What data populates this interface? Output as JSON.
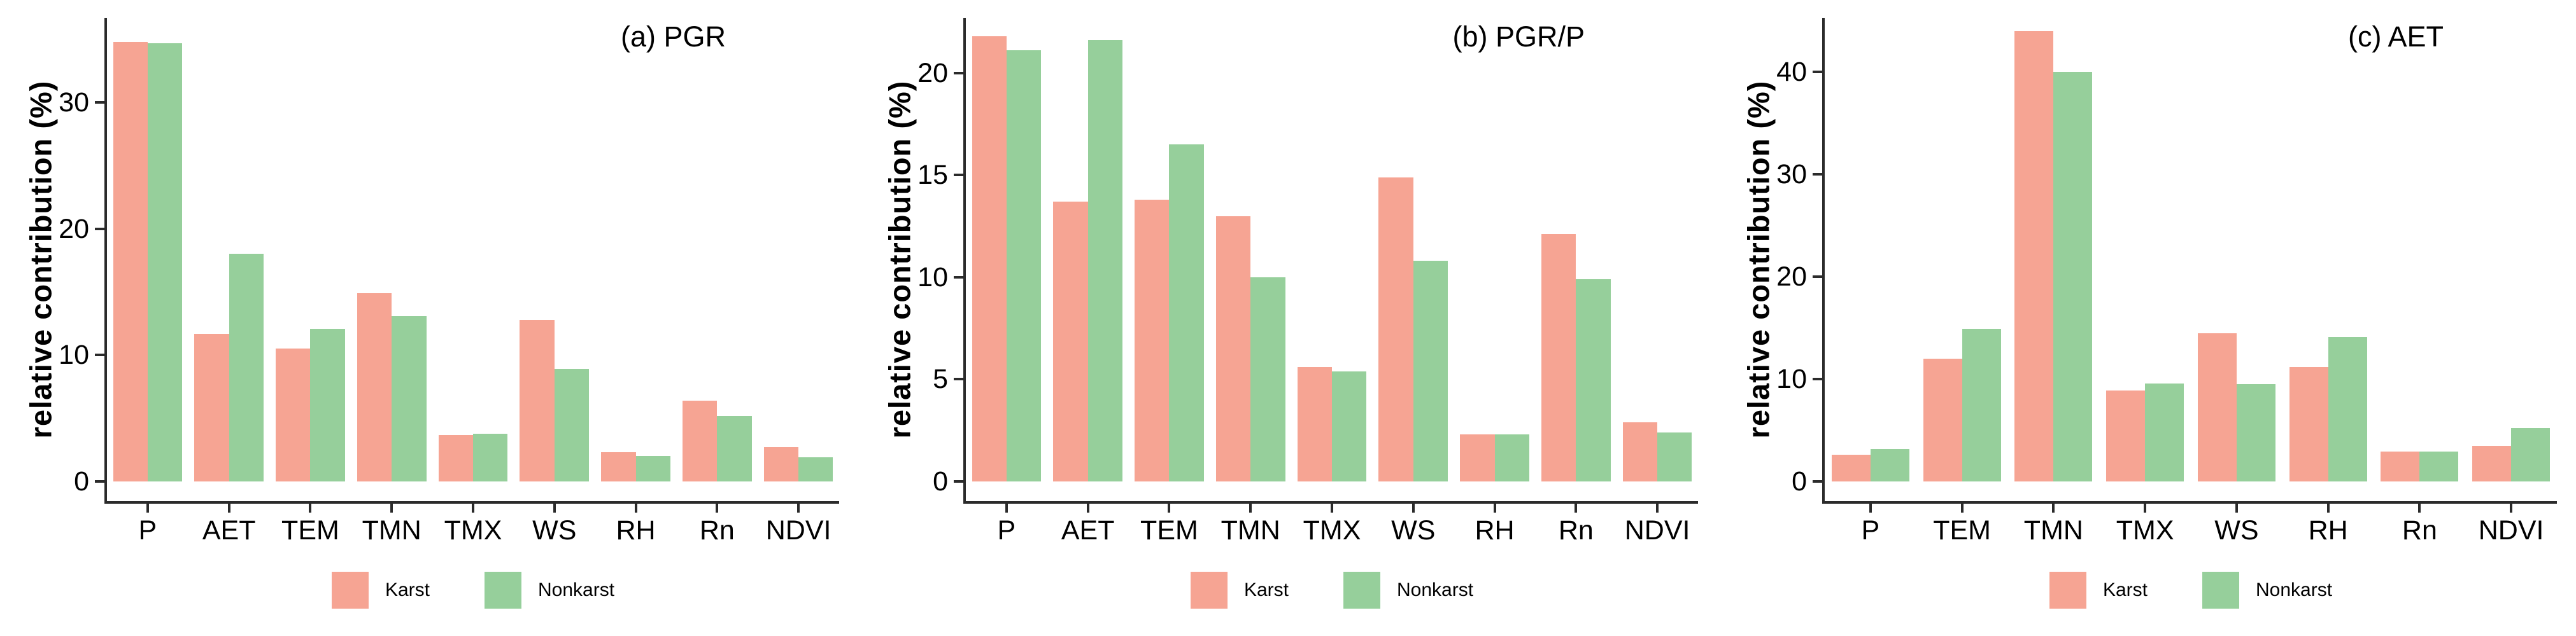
{
  "figure": {
    "ylabel": "relative contribution (%)"
  },
  "colors": {
    "karst": "#F6A493",
    "nonkarst": "#96CF9B",
    "axis": "#2B2B2B",
    "text": "#000000",
    "background": "#FFFFFF"
  },
  "legend": {
    "items": [
      {
        "label": "Karst",
        "color": "#F6A493"
      },
      {
        "label": "Nonkarst",
        "color": "#96CF9B"
      }
    ],
    "position": "bottom-center"
  },
  "chart_data": [
    {
      "type": "bar",
      "title": "(a) PGR",
      "xlabel": "",
      "ylabel": "relative contribution (%)",
      "categories": [
        "P",
        "AET",
        "TEM",
        "TMN",
        "TMX",
        "WS",
        "RH",
        "Rn",
        "NDVI"
      ],
      "series": [
        {
          "name": "Karst",
          "values": [
            34.8,
            11.7,
            10.5,
            14.9,
            3.7,
            12.8,
            2.3,
            6.4,
            2.7
          ]
        },
        {
          "name": "Nonkarst",
          "values": [
            34.7,
            18.0,
            12.1,
            13.1,
            3.8,
            8.9,
            2.0,
            5.2,
            1.9
          ]
        }
      ],
      "ylim": [
        0,
        36.7
      ],
      "yticks": [
        0,
        10,
        20,
        30
      ],
      "grid": false,
      "legend_position": "bottom"
    },
    {
      "type": "bar",
      "title": "(b) PGR/P",
      "xlabel": "",
      "ylabel": "relative contribution (%)",
      "categories": [
        "P",
        "AET",
        "TEM",
        "TMN",
        "TMX",
        "WS",
        "RH",
        "Rn",
        "NDVI"
      ],
      "series": [
        {
          "name": "Karst",
          "values": [
            21.8,
            13.7,
            13.8,
            13.0,
            5.6,
            14.9,
            2.3,
            12.1,
            2.9
          ]
        },
        {
          "name": "Nonkarst",
          "values": [
            21.1,
            21.6,
            16.5,
            10.0,
            5.4,
            10.8,
            2.3,
            9.9,
            2.4
          ]
        }
      ],
      "ylim": [
        0,
        22.7
      ],
      "yticks": [
        0,
        5,
        10,
        15,
        20
      ],
      "grid": false,
      "legend_position": "bottom"
    },
    {
      "type": "bar",
      "title": "(c) AET",
      "xlabel": "",
      "ylabel": "relative contribution (%)",
      "categories": [
        "P",
        "TEM",
        "TMN",
        "TMX",
        "WS",
        "RH",
        "Rn",
        "NDVI"
      ],
      "series": [
        {
          "name": "Karst",
          "values": [
            2.6,
            12.0,
            44.0,
            8.9,
            14.5,
            11.2,
            2.9,
            3.5
          ]
        },
        {
          "name": "Nonkarst",
          "values": [
            3.2,
            14.9,
            40.0,
            9.6,
            9.5,
            14.1,
            2.9,
            5.2
          ]
        }
      ],
      "ylim": [
        0,
        45.3
      ],
      "yticks": [
        0,
        10,
        20,
        30,
        40
      ],
      "grid": false,
      "legend_position": "bottom"
    }
  ]
}
